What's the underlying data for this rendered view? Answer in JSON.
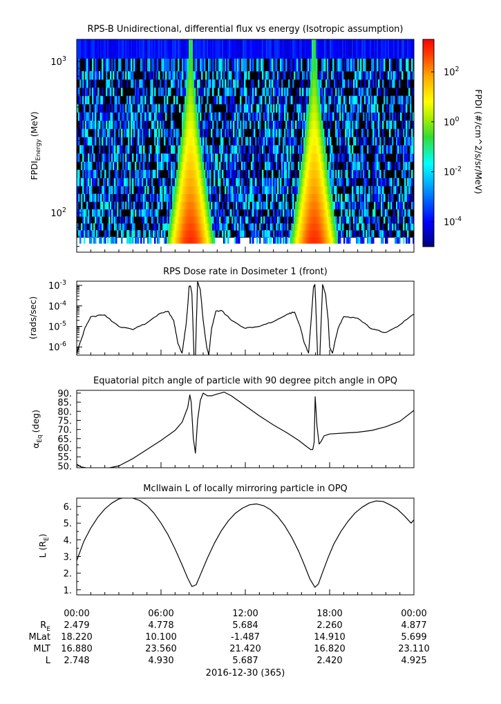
{
  "chart_data": [
    {
      "type": "heatmap",
      "title": "RPS-B  Unidirectional, differential flux vs energy (Isotropic assumption)",
      "ylabel_main": "FPDI",
      "ylabel_sub": "Energy",
      "ylabel_unit": "(MeV)",
      "yscale": "log",
      "ylim": [
        55,
        1400
      ],
      "yticks": [
        {
          "value": 100,
          "base": "10",
          "exp": "2"
        },
        {
          "value": 1000,
          "base": "10",
          "exp": "3"
        }
      ],
      "xlim_hours": [
        0,
        24
      ],
      "zscale": "log",
      "zlim": [
        1e-05,
        2000
      ],
      "colorbar_label": "FPDI (#/cm^2/s/sr/MeV)",
      "colorbar_ticks": [
        {
          "value": 0.0001,
          "base": "10",
          "exp": "-4"
        },
        {
          "value": 0.01,
          "base": "10",
          "exp": "-2"
        },
        {
          "value": 1,
          "base": "10",
          "exp": "0"
        },
        {
          "value": 100,
          "base": "10",
          "exp": "2"
        }
      ],
      "energy_channels_mev": [
        60,
        66,
        73,
        81,
        90,
        100,
        112,
        126,
        142,
        160,
        181,
        205,
        232,
        263,
        298,
        338,
        383,
        434,
        492,
        558,
        632,
        716,
        811,
        920,
        1200
      ],
      "flux_peaks": [
        {
          "time_h": 8.1,
          "energy_mev": 60,
          "peak_flux": 1000
        },
        {
          "time_h": 8.1,
          "energy_mev": 1000,
          "peak_flux": 0.3
        },
        {
          "time_h": 16.9,
          "energy_mev": 60,
          "peak_flux": 1000
        },
        {
          "time_h": 16.9,
          "energy_mev": 1000,
          "peak_flux": 0.3
        }
      ],
      "background_flux_range": [
        3e-05,
        0.05
      ]
    },
    {
      "type": "line",
      "title": "RPS  Dose rate in Dosimeter 1 (front)",
      "ylabel": "(rads/sec)",
      "yscale": "log",
      "ylim": [
        4e-07,
        0.0016
      ],
      "yticks": [
        {
          "value": 1e-06,
          "base": "10",
          "exp": "-6"
        },
        {
          "value": 1e-05,
          "base": "10",
          "exp": "-5"
        },
        {
          "value": 0.0001,
          "base": "10",
          "exp": "-4"
        },
        {
          "value": 0.001,
          "base": "10",
          "exp": "-3"
        }
      ],
      "x_hours": [
        0,
        0.1,
        0.3,
        0.6,
        1,
        2,
        3,
        4,
        5,
        6,
        6.5,
        6.9,
        7.2,
        7.5,
        7.8,
        7.9,
        8.0,
        8.1,
        8.2,
        8.35,
        8.45,
        8.6,
        8.8,
        9.0,
        9.25,
        9.4,
        9.6,
        9.9,
        10.3,
        11,
        12,
        13,
        14,
        15,
        15.5,
        15.9,
        16.2,
        16.5,
        16.7,
        16.85,
        16.95,
        17.0,
        17.15,
        17.3,
        17.5,
        17.7,
        17.9,
        18.0,
        18.2,
        18.6,
        19,
        20,
        21,
        22,
        23,
        24
      ],
      "values": [
        5e-07,
        8e-07,
        2e-06,
        9e-06,
        3e-05,
        3.6e-05,
        1e-05,
        7e-06,
        1.5e-05,
        4.5e-05,
        5.5e-05,
        2e-05,
        1.5e-06,
        5e-07,
        1.5e-05,
        0.0001,
        0.0009,
        0.0009,
        0.0004,
        3e-07,
        3e-07,
        0.0015,
        0.0006,
        2e-05,
        1e-06,
        4e-07,
        8e-06,
        5.5e-05,
        6e-05,
        2e-05,
        8e-06,
        1e-05,
        1.7e-05,
        4e-05,
        5e-05,
        1e-05,
        1.5e-06,
        5e-07,
        3e-05,
        0.0008,
        0.0011,
        0.0002,
        3e-07,
        3e-07,
        0.0011,
        0.0004,
        2e-05,
        1e-06,
        5e-07,
        8e-06,
        3e-05,
        2.5e-05,
        7.5e-06,
        5e-06,
        1.2e-05,
        4e-05
      ]
    },
    {
      "type": "line",
      "title": "Equatorial pitch angle of particle with 90 degree pitch angle in OPQ",
      "ylabel_main": "α",
      "ylabel_sub": "Eq",
      "ylabel_unit": "(deg)",
      "ylim": [
        49,
        91.5
      ],
      "yticks": [
        "50.",
        "55.",
        "60.",
        "65.",
        "70.",
        "75.",
        "80.",
        "85.",
        "90."
      ],
      "x_hours": [
        0,
        0.3,
        1,
        2,
        3,
        4,
        5,
        6,
        7,
        7.5,
        7.9,
        8.05,
        8.15,
        8.3,
        8.45,
        8.6,
        8.8,
        9.0,
        9.3,
        9.6,
        10,
        10.5,
        11,
        12,
        13,
        14,
        15,
        15.8,
        16.3,
        16.65,
        16.8,
        16.9,
        16.97,
        17.1,
        17.25,
        17.4,
        17.6,
        18,
        19,
        20,
        21,
        22,
        23,
        24
      ],
      "values": [
        51,
        49.5,
        48.5,
        48.5,
        50,
        54,
        59,
        64,
        69.5,
        74,
        82,
        89,
        85,
        65,
        57,
        75,
        86,
        90,
        88.5,
        88.5,
        89.5,
        90.5,
        88.5,
        83,
        77.5,
        72.5,
        68,
        64,
        61,
        59,
        59,
        63,
        88,
        72,
        62,
        63.5,
        66.5,
        67.5,
        68,
        68.5,
        69.5,
        71.5,
        74.5,
        80.5
      ]
    },
    {
      "type": "line",
      "title": "McIlwain L of locally mirroring particle in OPQ",
      "ylabel_main": "L (R",
      "ylabel_sub": "E",
      "ylabel_unit": ")",
      "ylim": [
        0.7,
        6.5
      ],
      "yticks": [
        "1.",
        "2.",
        "3.",
        "4.",
        "5.",
        "6."
      ],
      "x_hours": [
        0,
        0.5,
        1,
        1.5,
        2,
        2.5,
        3,
        3.5,
        4,
        4.5,
        5,
        5.5,
        6,
        6.5,
        7,
        7.5,
        7.9,
        8.2,
        8.5,
        8.9,
        9.3,
        9.8,
        10.3,
        10.8,
        11.3,
        11.8,
        12.3,
        12.8,
        13.3,
        13.8,
        14.3,
        14.8,
        15.3,
        15.8,
        16.2,
        16.6,
        16.95,
        17.2,
        17.5,
        17.9,
        18.3,
        18.8,
        19.3,
        19.8,
        20.3,
        20.8,
        21.3,
        21.8,
        22.3,
        22.8,
        23.3,
        23.8,
        24
      ],
      "values": [
        2.75,
        3.9,
        4.7,
        5.35,
        5.85,
        6.2,
        6.45,
        6.55,
        6.5,
        6.35,
        6.05,
        5.6,
        5.0,
        4.3,
        3.45,
        2.5,
        1.7,
        1.2,
        1.3,
        2.1,
        2.9,
        3.8,
        4.55,
        5.15,
        5.6,
        5.9,
        6.1,
        6.15,
        6.05,
        5.8,
        5.4,
        4.85,
        4.15,
        3.3,
        2.5,
        1.65,
        1.15,
        1.35,
        2.05,
        2.95,
        3.75,
        4.5,
        5.1,
        5.6,
        5.95,
        6.2,
        6.33,
        6.3,
        6.1,
        5.85,
        5.45,
        5.0,
        5.2
      ]
    }
  ],
  "time_axis": {
    "tick_labels": [
      "00:00",
      "06:00",
      "12:00",
      "18:00",
      "00:00"
    ],
    "rows": [
      {
        "label_main": "R",
        "label_sub": "E",
        "values": [
          "2.479",
          "4.778",
          "5.684",
          "2.260",
          "4.877"
        ]
      },
      {
        "label_main": "MLat",
        "label_sub": "",
        "values": [
          "18.220",
          "10.100",
          "-1.487",
          "14.910",
          "5.699"
        ]
      },
      {
        "label_main": "MLT",
        "label_sub": "",
        "values": [
          "16.880",
          "23.560",
          "21.420",
          "16.820",
          "23.110"
        ]
      },
      {
        "label_main": "L",
        "label_sub": "",
        "values": [
          "2.748",
          "4.930",
          "5.687",
          "2.420",
          "4.925"
        ]
      }
    ],
    "date": "2016-12-30 (365)"
  }
}
